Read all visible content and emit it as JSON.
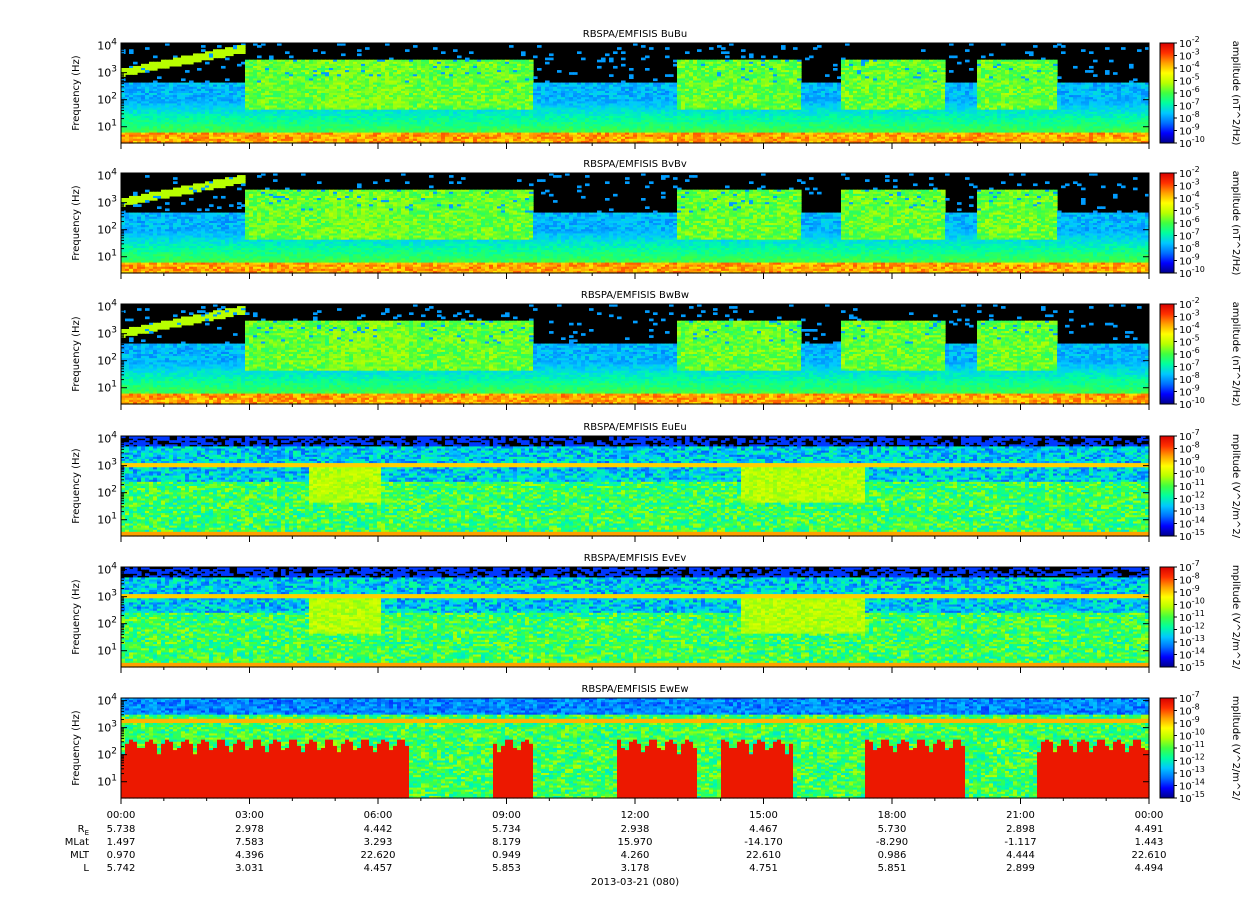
{
  "chart_data": {
    "type": "heatmap",
    "x_ticks": [
      "00:00",
      "03:00",
      "06:00",
      "09:00",
      "12:00",
      "15:00",
      "18:00",
      "21:00",
      "00:00"
    ],
    "x_date_label": "2013-03-21 (080)",
    "ephemeris": [
      {
        "label": "R",
        "label_sub": "E",
        "values": [
          "5.738",
          "2.978",
          "4.442",
          "5.734",
          "2.938",
          "4.467",
          "5.730",
          "2.898",
          "4.491"
        ]
      },
      {
        "label": "MLat",
        "label_sub": "",
        "values": [
          "1.497",
          "7.583",
          "3.293",
          "8.179",
          "15.970",
          "-14.170",
          "-8.290",
          "-1.117",
          "1.443"
        ]
      },
      {
        "label": "MLT",
        "label_sub": "",
        "values": [
          "0.970",
          "4.396",
          "22.620",
          "0.949",
          "4.260",
          "22.610",
          "0.986",
          "4.444",
          "22.610"
        ]
      },
      {
        "label": "L",
        "label_sub": "",
        "values": [
          "5.742",
          "3.031",
          "4.457",
          "5.853",
          "3.178",
          "4.751",
          "5.851",
          "2.899",
          "4.494"
        ]
      }
    ],
    "panels": [
      {
        "title": "RBSPA/EMFISIS  BuBu",
        "ylabel": "Frequency (Hz)",
        "zlabel": "amplitude (nT^2/Hz)",
        "kind": "B",
        "y_ticks": [
          {
            "base": "10",
            "exp": "1"
          },
          {
            "base": "10",
            "exp": "2"
          },
          {
            "base": "10",
            "exp": "3"
          },
          {
            "base": "10",
            "exp": "4"
          }
        ],
        "cbar_ticks": [
          {
            "base": "10",
            "exp": "-2"
          },
          {
            "base": "10",
            "exp": "-3"
          },
          {
            "base": "10",
            "exp": "-4"
          },
          {
            "base": "10",
            "exp": "-5"
          },
          {
            "base": "10",
            "exp": "-6"
          },
          {
            "base": "10",
            "exp": "-7"
          },
          {
            "base": "10",
            "exp": "-8"
          },
          {
            "base": "10",
            "exp": "-9"
          },
          {
            "base": "10",
            "exp": "-10"
          }
        ]
      },
      {
        "title": "RBSPA/EMFISIS  BvBv",
        "ylabel": "Frequency (Hz)",
        "zlabel": "amplitude (nT^2/Hz)",
        "kind": "B",
        "y_ticks": [
          {
            "base": "10",
            "exp": "1"
          },
          {
            "base": "10",
            "exp": "2"
          },
          {
            "base": "10",
            "exp": "3"
          },
          {
            "base": "10",
            "exp": "4"
          }
        ],
        "cbar_ticks": [
          {
            "base": "10",
            "exp": "-2"
          },
          {
            "base": "10",
            "exp": "-3"
          },
          {
            "base": "10",
            "exp": "-4"
          },
          {
            "base": "10",
            "exp": "-5"
          },
          {
            "base": "10",
            "exp": "-6"
          },
          {
            "base": "10",
            "exp": "-7"
          },
          {
            "base": "10",
            "exp": "-8"
          },
          {
            "base": "10",
            "exp": "-9"
          },
          {
            "base": "10",
            "exp": "-10"
          }
        ]
      },
      {
        "title": "RBSPA/EMFISIS  BwBw",
        "ylabel": "Frequency (Hz)",
        "zlabel": "amplitude (nT^2/Hz)",
        "kind": "B",
        "y_ticks": [
          {
            "base": "10",
            "exp": "1"
          },
          {
            "base": "10",
            "exp": "2"
          },
          {
            "base": "10",
            "exp": "3"
          },
          {
            "base": "10",
            "exp": "4"
          }
        ],
        "cbar_ticks": [
          {
            "base": "10",
            "exp": "-2"
          },
          {
            "base": "10",
            "exp": "-3"
          },
          {
            "base": "10",
            "exp": "-4"
          },
          {
            "base": "10",
            "exp": "-5"
          },
          {
            "base": "10",
            "exp": "-6"
          },
          {
            "base": "10",
            "exp": "-7"
          },
          {
            "base": "10",
            "exp": "-8"
          },
          {
            "base": "10",
            "exp": "-9"
          },
          {
            "base": "10",
            "exp": "-10"
          }
        ]
      },
      {
        "title": "RBSPA/EMFISIS  EuEu",
        "ylabel": "Frequency (Hz)",
        "zlabel": "mplitude (V^2/m^2/",
        "kind": "E",
        "y_ticks": [
          {
            "base": "10",
            "exp": "1"
          },
          {
            "base": "10",
            "exp": "2"
          },
          {
            "base": "10",
            "exp": "3"
          },
          {
            "base": "10",
            "exp": "4"
          }
        ],
        "cbar_ticks": [
          {
            "base": "10",
            "exp": "-7"
          },
          {
            "base": "10",
            "exp": "-8"
          },
          {
            "base": "10",
            "exp": "-9"
          },
          {
            "base": "10",
            "exp": "-10"
          },
          {
            "base": "10",
            "exp": "-11"
          },
          {
            "base": "10",
            "exp": "-12"
          },
          {
            "base": "10",
            "exp": "-13"
          },
          {
            "base": "10",
            "exp": "-14"
          },
          {
            "base": "10",
            "exp": "-15"
          }
        ]
      },
      {
        "title": "RBSPA/EMFISIS  EvEv",
        "ylabel": "Frequency (Hz)",
        "zlabel": "mplitude (V^2/m^2/",
        "kind": "E",
        "y_ticks": [
          {
            "base": "10",
            "exp": "1"
          },
          {
            "base": "10",
            "exp": "2"
          },
          {
            "base": "10",
            "exp": "3"
          },
          {
            "base": "10",
            "exp": "4"
          }
        ],
        "cbar_ticks": [
          {
            "base": "10",
            "exp": "-7"
          },
          {
            "base": "10",
            "exp": "-8"
          },
          {
            "base": "10",
            "exp": "-9"
          },
          {
            "base": "10",
            "exp": "-10"
          },
          {
            "base": "10",
            "exp": "-11"
          },
          {
            "base": "10",
            "exp": "-12"
          },
          {
            "base": "10",
            "exp": "-13"
          },
          {
            "base": "10",
            "exp": "-14"
          },
          {
            "base": "10",
            "exp": "-15"
          }
        ]
      },
      {
        "title": "RBSPA/EMFISIS  EwEw",
        "ylabel": "Frequency (Hz)",
        "zlabel": "mplitude (V^2/m^2/",
        "kind": "W",
        "y_ticks": [
          {
            "base": "10",
            "exp": "1"
          },
          {
            "base": "10",
            "exp": "2"
          },
          {
            "base": "10",
            "exp": "3"
          },
          {
            "base": "10",
            "exp": "4"
          }
        ],
        "cbar_ticks": [
          {
            "base": "10",
            "exp": "-7"
          },
          {
            "base": "10",
            "exp": "-8"
          },
          {
            "base": "10",
            "exp": "-9"
          },
          {
            "base": "10",
            "exp": "-10"
          },
          {
            "base": "10",
            "exp": "-11"
          },
          {
            "base": "10",
            "exp": "-12"
          },
          {
            "base": "10",
            "exp": "-13"
          },
          {
            "base": "10",
            "exp": "-14"
          },
          {
            "base": "10",
            "exp": "-15"
          }
        ]
      }
    ],
    "colormap": [
      "#00008b",
      "#0000ff",
      "#0070ff",
      "#00c8ff",
      "#00ffa0",
      "#40ff40",
      "#b8ff00",
      "#ffff00",
      "#ffa000",
      "#ff3000",
      "#d80000"
    ]
  }
}
